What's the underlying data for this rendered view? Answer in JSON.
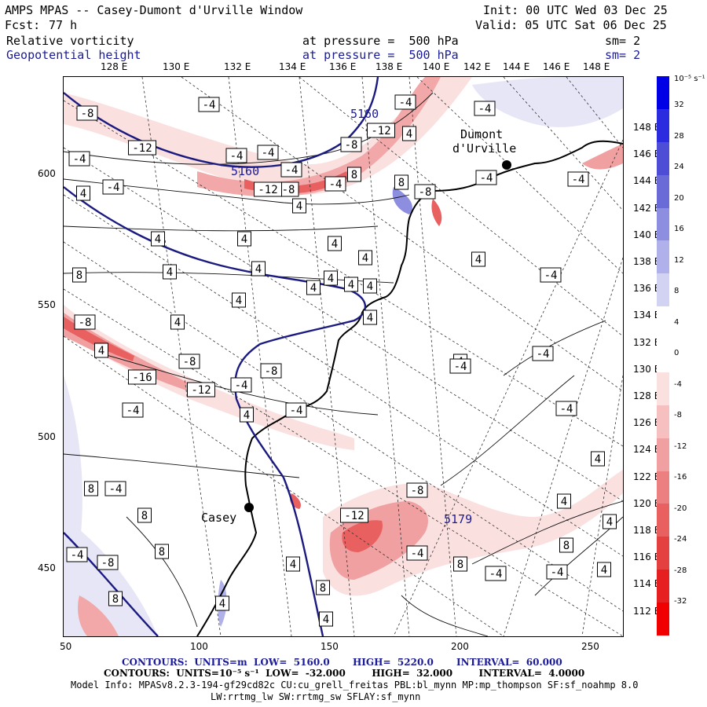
{
  "header": {
    "title": "AMPS MPAS -- Casey-Dumont d'Urville Window",
    "init": "Init: 00 UTC Wed 03 Dec 25",
    "fcst_label": "Fcst:",
    "fcst_value": "77 h",
    "valid": "Valid: 05 UTC Sat 06 Dec 25",
    "field1_name": "Relative vorticity",
    "field1_level": "at pressure =  500 hPa",
    "field1_sm": "sm= 2",
    "field2_name": "Geopotential height",
    "field2_level": "at pressure =  500 hPa",
    "field2_sm": "sm= 2"
  },
  "axes": {
    "top_longitudes": [
      "128 E",
      "130 E",
      "132 E",
      "134 E",
      "136 E",
      "138 E",
      "140 E",
      "142 E",
      "144 E",
      "146 E",
      "148 E"
    ],
    "left_ticks": [
      "600",
      "550",
      "500",
      "450"
    ],
    "bottom_ticks": [
      "50",
      "100",
      "150",
      "200",
      "250"
    ],
    "right_longitudes": [
      "148 E",
      "146 E",
      "144 E",
      "142 E",
      "140 E",
      "138 E",
      "136 E",
      "134 E",
      "132 E",
      "130 E",
      "128 E",
      "126 E",
      "124 E",
      "122 E",
      "120 E",
      "118 E",
      "116 E",
      "114 E",
      "112 E"
    ]
  },
  "colorbar": {
    "unit": "10⁻⁵ s⁻¹",
    "labels": [
      "32",
      "28",
      "24",
      "20",
      "16",
      "12",
      "8",
      "4",
      "0",
      "-4",
      "-8",
      "-12",
      "-16",
      "-20",
      "-24",
      "-28",
      "-32"
    ],
    "colors": [
      "#0000e6",
      "#2b2bdf",
      "#4d4dd6",
      "#6b6bd8",
      "#8e8ee0",
      "#b0b0ea",
      "#d2d2f3",
      "#ffffff",
      "#ffffff",
      "#fbe0e0",
      "#f6c0c0",
      "#f0a0a0",
      "#ec8080",
      "#e86060",
      "#e44040",
      "#e62020",
      "#f00000"
    ]
  },
  "map": {
    "places": [
      "Dumont",
      "d'Urville",
      "Casey"
    ],
    "height_labels": [
      "5160",
      "5160",
      "5179"
    ],
    "vort_labels": [
      "-8",
      "-4",
      "-4",
      "-12",
      "-4",
      "-12",
      "4",
      "-4",
      "-8",
      "-4",
      "-4",
      "-8",
      "-12",
      "-4",
      "8",
      "4",
      "-4",
      "4",
      "8",
      "-8",
      "-4",
      "4",
      "4",
      "4",
      "4",
      "8",
      "4",
      "4",
      "4",
      "4",
      "4",
      "4",
      "4",
      "4",
      "-4",
      "4",
      "4",
      "-4",
      "-4",
      "-8",
      "4",
      "-16",
      "-8",
      "-12",
      "-4",
      "-8",
      "4",
      "-4",
      "-4",
      "4",
      "-4",
      "8",
      "-4",
      "8",
      "8",
      "-4",
      "-8",
      "8",
      "-12",
      "-8",
      "-4",
      "8",
      "-4",
      "4",
      "8",
      "-4",
      "4",
      "4",
      "4",
      "-4",
      "-4",
      "4",
      "4",
      "8",
      "4"
    ]
  },
  "footer": {
    "line1": "CONTOURS:  UNITS=m  LOW=  5160.0       HIGH=  5220.0       INTERVAL=  60.000",
    "line2": "CONTOURS:  UNITS=10⁻⁵ s⁻¹  LOW=  -32.000        HIGH=  32.000        INTERVAL=  4.0000",
    "line3": "Model Info: MPASv8.2.3-194-gf29cd82c CU:cu_grell_freitas PBL:bl_mynn MP:mp_thompson SF:sf_noahmp 8.0",
    "line4": "LW:rrtmg_lw SW:rrtmg_sw SFLAY:sf_mynn"
  }
}
